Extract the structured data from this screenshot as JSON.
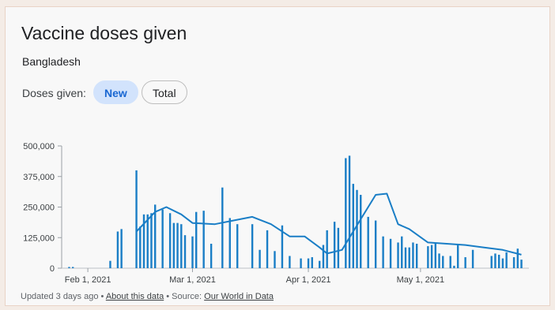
{
  "card": {
    "title": "Vaccine doses given",
    "subtitle": "Bangladesh",
    "doses_label": "Doses given:",
    "chips": {
      "new": "New",
      "total": "Total"
    }
  },
  "footer": {
    "updated": "Updated 3 days ago",
    "sep1": " • ",
    "about_link": "About this data",
    "sep2": " • Source: ",
    "source_link": "Our World in Data"
  },
  "colors": {
    "bar": "#1a7ec6",
    "line": "#1a7ec6",
    "active_chip_bg": "#d2e3fc",
    "active_chip_text": "#1967d2"
  },
  "chart_data": {
    "type": "bar",
    "title": "",
    "xlabel": "",
    "ylabel": "",
    "ylim": [
      0,
      500000
    ],
    "y_ticks": [
      0,
      125000,
      250000,
      375000,
      500000
    ],
    "y_tick_labels": [
      "0",
      "125,000",
      "250,000",
      "375,000",
      "500,000"
    ],
    "x_ticks": [
      "2021-02-01",
      "2021-03-01",
      "2021-04-01",
      "2021-05-01"
    ],
    "x_tick_labels": [
      "Feb 1, 2021",
      "Mar 1, 2021",
      "Apr 1, 2021",
      "May 1, 2021"
    ],
    "series": [
      {
        "kind": "bar",
        "x": [
          "2021-01-27",
          "2021-01-28",
          "2021-02-07",
          "2021-02-09",
          "2021-02-10",
          "2021-02-14",
          "2021-02-15",
          "2021-02-16",
          "2021-02-17",
          "2021-02-18",
          "2021-02-19",
          "2021-02-21",
          "2021-02-23",
          "2021-02-24",
          "2021-02-25",
          "2021-02-26",
          "2021-02-27",
          "2021-03-01",
          "2021-03-02",
          "2021-03-04",
          "2021-03-06",
          "2021-03-09",
          "2021-03-11",
          "2021-03-13",
          "2021-03-17",
          "2021-03-19",
          "2021-03-21",
          "2021-03-23",
          "2021-03-25",
          "2021-03-27",
          "2021-03-30",
          "2021-04-01",
          "2021-04-02",
          "2021-04-04",
          "2021-04-05",
          "2021-04-06",
          "2021-04-08",
          "2021-04-09",
          "2021-04-11",
          "2021-04-12",
          "2021-04-13",
          "2021-04-14",
          "2021-04-15",
          "2021-04-17",
          "2021-04-19",
          "2021-04-21",
          "2021-04-23",
          "2021-04-25",
          "2021-04-26",
          "2021-04-27",
          "2021-04-28",
          "2021-04-29",
          "2021-04-30",
          "2021-05-03",
          "2021-05-04",
          "2021-05-05",
          "2021-05-06",
          "2021-05-07",
          "2021-05-09",
          "2021-05-10",
          "2021-05-11",
          "2021-05-13",
          "2021-05-15",
          "2021-05-20",
          "2021-05-21",
          "2021-05-22",
          "2021-05-23",
          "2021-05-24",
          "2021-05-26",
          "2021-05-27",
          "2021-05-28"
        ],
        "values": [
          5000,
          5000,
          30000,
          150000,
          160000,
          400000,
          170000,
          220000,
          220000,
          225000,
          260000,
          240000,
          225000,
          185000,
          185000,
          180000,
          135000,
          130000,
          230000,
          235000,
          100000,
          330000,
          205000,
          180000,
          180000,
          75000,
          155000,
          70000,
          175000,
          50000,
          40000,
          40000,
          45000,
          30000,
          95000,
          155000,
          190000,
          165000,
          450000,
          460000,
          345000,
          320000,
          300000,
          210000,
          195000,
          130000,
          120000,
          105000,
          130000,
          85000,
          85000,
          105000,
          100000,
          90000,
          95000,
          100000,
          60000,
          50000,
          50000,
          10000,
          95000,
          45000,
          75000,
          50000,
          60000,
          55000,
          40000,
          65000,
          45000,
          80000,
          35000
        ]
      },
      {
        "kind": "line",
        "name": "",
        "x": [
          "2021-02-14",
          "2021-02-19",
          "2021-02-22",
          "2021-02-26",
          "2021-03-01",
          "2021-03-07",
          "2021-03-12",
          "2021-03-17",
          "2021-03-22",
          "2021-03-27",
          "2021-03-31",
          "2021-04-04",
          "2021-04-06",
          "2021-04-10",
          "2021-04-15",
          "2021-04-19",
          "2021-04-22",
          "2021-04-25",
          "2021-04-28",
          "2021-05-03",
          "2021-05-08",
          "2021-05-13",
          "2021-05-18",
          "2021-05-23",
          "2021-05-28"
        ],
        "values": [
          150000,
          230000,
          250000,
          220000,
          185000,
          180000,
          195000,
          210000,
          180000,
          130000,
          130000,
          85000,
          60000,
          75000,
          200000,
          300000,
          305000,
          180000,
          160000,
          105000,
          100000,
          95000,
          85000,
          75000,
          55000
        ]
      }
    ]
  }
}
